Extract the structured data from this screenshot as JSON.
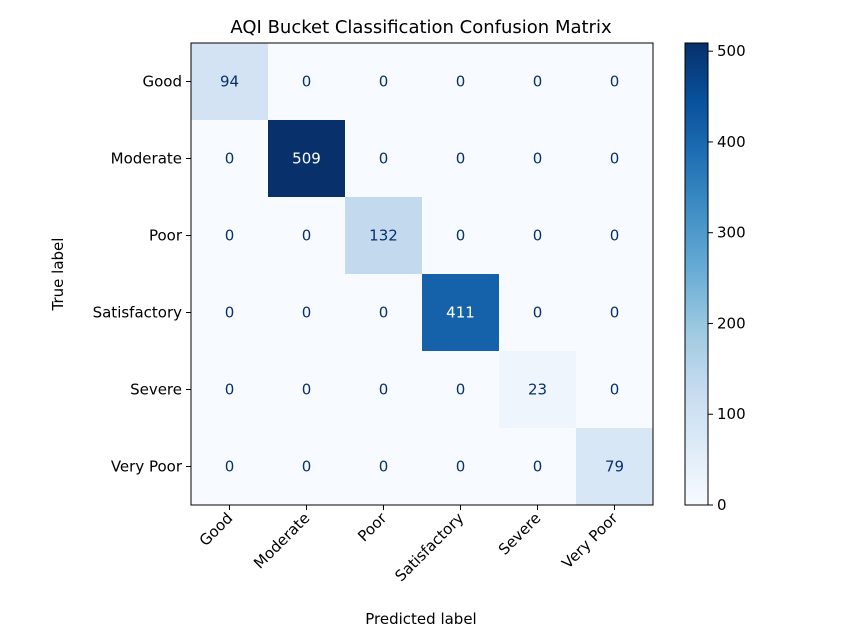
{
  "chart_data": {
    "type": "heatmap",
    "title": "AQI Bucket Classification Confusion Matrix",
    "xlabel": "Predicted label",
    "ylabel": "True label",
    "x_categories": [
      "Good",
      "Moderate",
      "Poor",
      "Satisfactory",
      "Severe",
      "Very Poor"
    ],
    "y_categories": [
      "Good",
      "Moderate",
      "Poor",
      "Satisfactory",
      "Severe",
      "Very Poor"
    ],
    "matrix": [
      [
        94,
        0,
        0,
        0,
        0,
        0
      ],
      [
        0,
        509,
        0,
        0,
        0,
        0
      ],
      [
        0,
        0,
        132,
        0,
        0,
        0
      ],
      [
        0,
        0,
        0,
        411,
        0,
        0
      ],
      [
        0,
        0,
        0,
        0,
        23,
        0
      ],
      [
        0,
        0,
        0,
        0,
        0,
        79
      ]
    ],
    "colormap": "Blues",
    "colorbar": {
      "range": [
        0,
        509
      ],
      "ticks": [
        0,
        100,
        200,
        300,
        400,
        500
      ]
    },
    "grid": false
  }
}
